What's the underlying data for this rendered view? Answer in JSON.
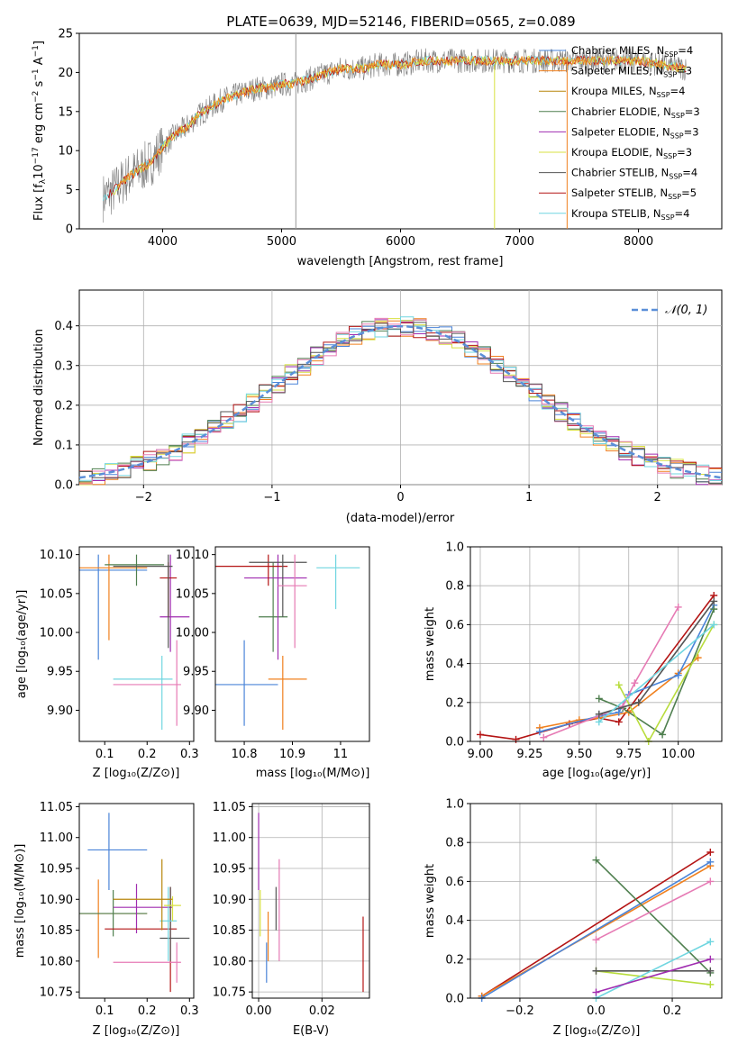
{
  "page_title": "PLATE=0639, MJD=52146, FIBERID=0565, z=0.089",
  "colors": {
    "chabrier_miles": "#4a84d8",
    "salpeter_miles": "#f0801e",
    "kroupa_miles": "#b8860b",
    "chabrier_elodie": "#4f7f4f",
    "salpeter_elodie": "#a02db0",
    "kroupa_elodie": "#d8e040",
    "chabrier_stelib": "#555555",
    "salpeter_stelib": "#b41414",
    "kroupa_stelib": "#70d6e0",
    "pink": "#e67ab4",
    "lime": "#b8dc3c",
    "spectrum": "#808080",
    "normal": "#5b8fd8"
  },
  "chart_data": [
    {
      "type": "line",
      "title": "PLATE=0639, MJD=52146, FIBERID=0565, z=0.089",
      "xlabel": "wavelength [Angstrom, rest frame]",
      "ylabel": "Flux [f_λ 10^-17 erg cm^-2 s^-1 A^-1]",
      "xlim": [
        3300,
        8700
      ],
      "ylim": [
        0,
        25
      ],
      "xticks": [
        4000,
        5000,
        6000,
        7000,
        8000
      ],
      "yticks": [
        0,
        5,
        10,
        15,
        20,
        25
      ],
      "legend_position": "right",
      "continuum": {
        "x": [
          3500,
          3600,
          3700,
          3800,
          3900,
          4000,
          4100,
          4200,
          4300,
          4400,
          4500,
          4600,
          4700,
          4800,
          4900,
          5000,
          5100,
          5200,
          5300,
          5400,
          5500,
          5600,
          5700,
          5800,
          5900,
          6000,
          6200,
          6400,
          6600,
          6800,
          7000,
          7200,
          7400,
          7600,
          7800,
          8000,
          8200,
          8400
        ],
        "y": [
          4,
          5,
          6.5,
          7.5,
          8.5,
          10.5,
          12,
          13,
          14.5,
          15.5,
          16.5,
          17,
          17.5,
          18,
          18,
          18.5,
          18.5,
          19,
          19.5,
          20,
          20.5,
          20.5,
          20.5,
          21,
          21,
          21,
          21.5,
          21.5,
          21.5,
          21.5,
          21.5,
          21.5,
          21.5,
          21.5,
          21.5,
          21.5,
          21,
          20.5
        ]
      },
      "series": [
        {
          "name": "Chabrier MILES, N_SSP=4"
        },
        {
          "name": "Salpeter MILES, N_SSP=3"
        },
        {
          "name": "Kroupa MILES, N_SSP=4"
        },
        {
          "name": "Chabrier ELODIE, N_SSP=3"
        },
        {
          "name": "Salpeter ELODIE, N_SSP=3"
        },
        {
          "name": "Kroupa ELODIE, N_SSP=3"
        },
        {
          "name": "Chabrier STELIB, N_SSP=4"
        },
        {
          "name": "Salpeter STELIB, N_SSP=5"
        },
        {
          "name": "Kroupa STELIB, N_SSP=4"
        }
      ]
    },
    {
      "type": "histogram",
      "xlabel": "(data-model)/error",
      "ylabel": "Normed distribution",
      "xlim": [
        -2.5,
        2.5
      ],
      "ylim": [
        0,
        0.49
      ],
      "xticks": [
        -2,
        -1,
        0,
        1,
        2
      ],
      "yticks": [
        0.0,
        0.1,
        0.2,
        0.3,
        0.4
      ],
      "legend_position": "top-right",
      "legend": "N(0,1)",
      "bin_width": 0.1,
      "grid": true
    },
    {
      "type": "errorbar",
      "xlabel": "Z [log10(Z/Z_sun)]",
      "ylabel": "age [log10(age/yr)]",
      "xlim": [
        0.04,
        0.31
      ],
      "ylim": [
        9.86,
        10.11
      ],
      "xticks": [
        0.1,
        0.2,
        0.3
      ],
      "yticks": [
        9.9,
        9.95,
        10.0,
        10.05,
        10.1
      ],
      "points": [
        {
          "x": 0.085,
          "y": 10.08,
          "xerr": [
            0.04,
            0.2
          ],
          "yerr": [
            9.965,
            10.1
          ]
        },
        {
          "x": 0.11,
          "y": 10.083,
          "xerr": [
            0.04,
            0.2
          ],
          "yerr": [
            9.99,
            10.1
          ]
        },
        {
          "x": 0.175,
          "y": 10.087,
          "xerr": [
            0.1,
            0.24
          ],
          "yerr": [
            10.06,
            10.1
          ]
        },
        {
          "x": 0.255,
          "y": 10.02,
          "xerr": [
            0.23,
            0.3
          ],
          "yerr": [
            9.975,
            10.1
          ]
        },
        {
          "x": 0.25,
          "y": 10.07,
          "xerr": [
            0.23,
            0.27
          ],
          "yerr": [
            10.02,
            10.09
          ]
        },
        {
          "x": 0.25,
          "y": 10.085,
          "xerr": [
            0.12,
            0.26
          ],
          "yerr": [
            9.98,
            10.1
          ]
        },
        {
          "x": 0.235,
          "y": 9.94,
          "xerr": [
            0.12,
            0.26
          ],
          "yerr": [
            9.875,
            9.97
          ]
        },
        {
          "x": 0.27,
          "y": 9.933,
          "xerr": [
            0.12,
            0.28
          ],
          "yerr": [
            9.88,
            9.99
          ]
        }
      ]
    },
    {
      "type": "errorbar",
      "xlabel": "mass [log10(M/M_sun)]",
      "xlim": [
        10.74,
        11.06
      ],
      "ylim": [
        9.86,
        10.11
      ],
      "xticks": [
        10.8,
        10.9,
        11.0
      ],
      "yticks": [
        9.9,
        9.95,
        10.0,
        10.05,
        10.1
      ],
      "points": [
        {
          "x": 10.8,
          "y": 9.933,
          "xerr": [
            10.74,
            10.87
          ],
          "yerr": [
            9.88,
            9.99
          ]
        },
        {
          "x": 10.88,
          "y": 9.94,
          "xerr": [
            10.85,
            10.93
          ],
          "yerr": [
            9.875,
            9.97
          ]
        },
        {
          "x": 10.86,
          "y": 10.02,
          "xerr": [
            10.83,
            10.89
          ],
          "yerr": [
            9.975,
            10.09
          ]
        },
        {
          "x": 10.87,
          "y": 10.07,
          "xerr": [
            10.8,
            10.93
          ],
          "yerr": [
            9.965,
            10.1
          ]
        },
        {
          "x": 10.85,
          "y": 10.085,
          "xerr": [
            10.74,
            10.89
          ],
          "yerr": [
            10.06,
            10.1
          ]
        },
        {
          "x": 10.88,
          "y": 10.09,
          "xerr": [
            10.81,
            10.93
          ],
          "yerr": [
            10.02,
            10.1
          ]
        },
        {
          "x": 10.99,
          "y": 10.083,
          "xerr": [
            10.95,
            11.04
          ],
          "yerr": [
            10.03,
            10.1
          ]
        },
        {
          "x": 10.905,
          "y": 10.06,
          "xerr": [
            10.87,
            10.93
          ],
          "yerr": [
            9.98,
            10.1
          ]
        }
      ]
    },
    {
      "type": "line",
      "xlabel": "age [log10(age/yr)]",
      "ylabel": "mass weight",
      "xlim": [
        8.95,
        10.22
      ],
      "ylim": [
        0,
        1
      ],
      "xticks": [
        9.0,
        9.25,
        9.5,
        9.75,
        10.0
      ],
      "yticks": [
        0.0,
        0.2,
        0.4,
        0.6,
        0.8,
        1.0
      ],
      "grid": true,
      "series": [
        {
          "x": [
            9.0,
            9.18,
            9.45,
            9.6,
            9.7,
            10.18
          ],
          "y": [
            0.035,
            0.01,
            0.09,
            0.12,
            0.1,
            0.75
          ]
        },
        {
          "x": [
            9.3,
            9.5,
            9.6,
            9.75,
            10.0,
            10.1
          ],
          "y": [
            0.07,
            0.11,
            0.12,
            0.15,
            0.35,
            0.43
          ]
        },
        {
          "x": [
            9.3,
            9.6,
            9.7,
            9.75,
            10.0,
            10.18
          ],
          "y": [
            0.05,
            0.13,
            0.15,
            0.24,
            0.34,
            0.7
          ]
        },
        {
          "x": [
            9.6,
            9.72,
            9.92,
            10.18
          ],
          "y": [
            0.22,
            0.17,
            0.035,
            0.68
          ]
        },
        {
          "x": [
            9.32,
            9.72,
            9.78,
            10.0
          ],
          "y": [
            0.02,
            0.18,
            0.3,
            0.69
          ]
        },
        {
          "x": [
            9.7,
            9.85,
            10.18
          ],
          "y": [
            0.29,
            0.0,
            0.6
          ]
        },
        {
          "x": [
            9.6,
            9.8,
            10.18
          ],
          "y": [
            0.14,
            0.2,
            0.72
          ]
        },
        {
          "x": [
            9.6,
            10.18
          ],
          "y": [
            0.1,
            0.6
          ]
        }
      ]
    },
    {
      "type": "errorbar",
      "xlabel": "Z [log10(Z/Z_sun)]",
      "ylabel": "mass [log10(M/M_sun)]",
      "xlim": [
        0.04,
        0.31
      ],
      "ylim": [
        10.74,
        11.055
      ],
      "xticks": [
        0.1,
        0.2,
        0.3
      ],
      "yticks": [
        10.75,
        10.8,
        10.85,
        10.9,
        10.95,
        11.0,
        11.05
      ],
      "points": [
        {
          "x": 0.11,
          "y": 10.98,
          "xerr": [
            0.06,
            0.2
          ],
          "yerr": [
            10.915,
            11.04
          ]
        },
        {
          "x": 0.085,
          "y": 10.877,
          "xerr": [
            0.04,
            0.2
          ],
          "yerr": [
            10.805,
            10.932
          ]
        },
        {
          "x": 0.12,
          "y": 10.877,
          "xerr": [
            0.04,
            0.2
          ],
          "yerr": [
            10.84,
            10.915
          ]
        },
        {
          "x": 0.175,
          "y": 10.887,
          "xerr": [
            0.12,
            0.26
          ],
          "yerr": [
            10.845,
            10.925
          ]
        },
        {
          "x": 0.255,
          "y": 10.852,
          "xerr": [
            0.1,
            0.27
          ],
          "yerr": [
            10.75,
            10.92
          ]
        },
        {
          "x": 0.255,
          "y": 10.837,
          "xerr": [
            0.23,
            0.3
          ],
          "yerr": [
            10.8,
            10.92
          ]
        },
        {
          "x": 0.25,
          "y": 10.865,
          "xerr": [
            0.23,
            0.27
          ],
          "yerr": [
            10.8,
            10.92
          ]
        },
        {
          "x": 0.27,
          "y": 10.798,
          "xerr": [
            0.12,
            0.28
          ],
          "yerr": [
            10.765,
            10.83
          ]
        },
        {
          "x": 0.26,
          "y": 10.89,
          "xerr": [
            0.24,
            0.28
          ],
          "yerr": [
            10.865,
            10.905
          ]
        },
        {
          "x": 0.235,
          "y": 10.9,
          "xerr": [
            0.12,
            0.26
          ],
          "yerr": [
            10.85,
            10.965
          ]
        }
      ]
    },
    {
      "type": "bar",
      "xlabel": "E(B-V)",
      "xlim": [
        -0.002,
        0.035
      ],
      "ylim": [
        10.74,
        11.055
      ],
      "xticks": [
        0.0,
        0.02
      ],
      "yticks": [
        10.75,
        10.8,
        10.85,
        10.9,
        10.95,
        11.0,
        11.05
      ],
      "points": [
        {
          "x": 0.0,
          "ylow": 10.915,
          "yhigh": 11.04
        },
        {
          "x": 0.0005,
          "ylow": 10.84,
          "yhigh": 10.915
        },
        {
          "x": 0.0025,
          "ylow": 10.765,
          "yhigh": 10.83
        },
        {
          "x": 0.003,
          "ylow": 10.8,
          "yhigh": 10.88
        },
        {
          "x": 0.0055,
          "ylow": 10.85,
          "yhigh": 10.92
        },
        {
          "x": 0.0065,
          "ylow": 10.8,
          "yhigh": 10.965
        },
        {
          "x": 0.033,
          "ylow": 10.75,
          "yhigh": 10.872
        }
      ]
    },
    {
      "type": "line",
      "xlabel": "Z [log10(Z/Z_sun)]",
      "ylabel": "mass weight",
      "xlim": [
        -0.33,
        0.33
      ],
      "ylim": [
        0,
        1
      ],
      "xticks": [
        -0.2,
        0.0,
        0.2
      ],
      "yticks": [
        0.0,
        0.2,
        0.4,
        0.6,
        0.8,
        1.0
      ],
      "grid": true,
      "series": [
        {
          "x": [
            -0.3,
            0.3
          ],
          "y": [
            0.01,
            0.75
          ]
        },
        {
          "x": [
            -0.3,
            0.3
          ],
          "y": [
            0.01,
            0.68
          ]
        },
        {
          "x": [
            -0.3,
            0.3
          ],
          "y": [
            0.0,
            0.7
          ]
        },
        {
          "x": [
            0.0,
            0.3
          ],
          "y": [
            0.71,
            0.13
          ]
        },
        {
          "x": [
            0.0,
            0.3
          ],
          "y": [
            0.3,
            0.6
          ]
        },
        {
          "x": [
            0.0,
            0.3
          ],
          "y": [
            0.14,
            0.07
          ]
        },
        {
          "x": [
            0.0,
            0.3
          ],
          "y": [
            0.14,
            0.14
          ]
        },
        {
          "x": [
            0.0,
            0.3
          ],
          "y": [
            0.0,
            0.29
          ]
        },
        {
          "x": [
            0.0,
            0.3
          ],
          "y": [
            0.03,
            0.2
          ]
        }
      ]
    }
  ]
}
